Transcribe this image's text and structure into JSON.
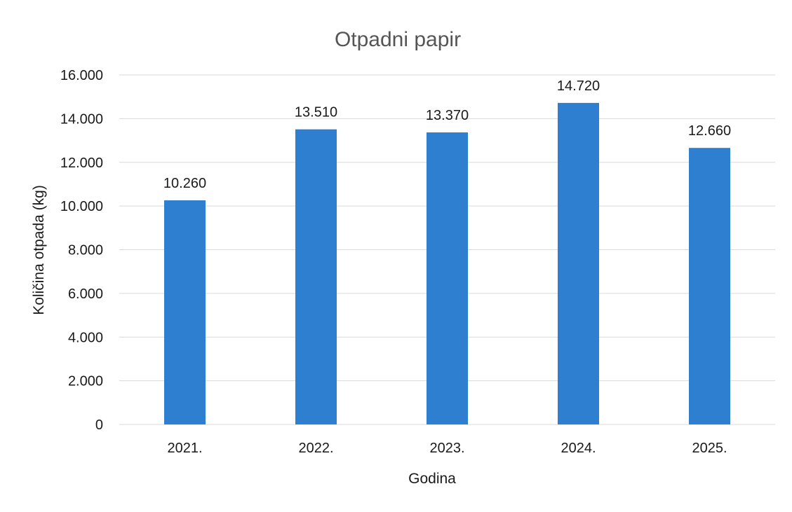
{
  "chart_data": {
    "type": "bar",
    "title": "Otpadni papir",
    "xlabel": "Godina",
    "ylabel": "Količina otpada (kg)",
    "categories": [
      "2021.",
      "2022.",
      "2023.",
      "2024.",
      "2025."
    ],
    "values": [
      10260,
      13510,
      13370,
      14720,
      12660
    ],
    "data_labels": [
      "10.260",
      "13.510",
      "13.370",
      "14.720",
      "12.660"
    ],
    "ylim": [
      0,
      16000
    ],
    "yticks": [
      0,
      2000,
      4000,
      6000,
      8000,
      10000,
      12000,
      14000,
      16000
    ],
    "ytick_labels": [
      "0",
      "2.000",
      "4.000",
      "6.000",
      "8.000",
      "10.000",
      "12.000",
      "14.000",
      "16.000"
    ],
    "grid": true,
    "legend": "none",
    "bar_color": "#2f7fd0",
    "grid_color": "#d9d9d9",
    "text_color": "#1a1a1a",
    "title_color": "#555555"
  }
}
